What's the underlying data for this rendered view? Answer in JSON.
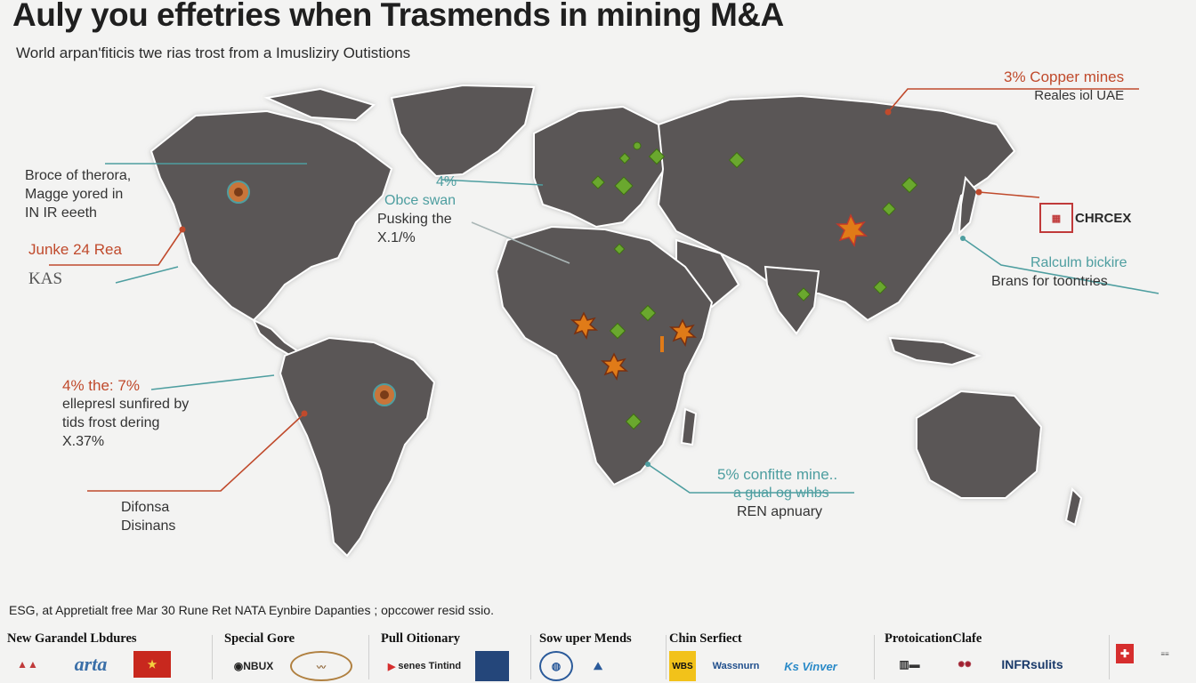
{
  "title": "Auly you effetries when Trasmends in mining M&A",
  "subtitle": "World arpan'fiticis twe rias trost from a Imusliziry Outistions",
  "callouts": {
    "north_america": {
      "line1": "Broce of therora,",
      "line2": "Magge yored in",
      "line3": "IN IR eeeth"
    },
    "mexico": {
      "line1": "Junke 24 Rea",
      "line2": "KAS"
    },
    "atlantic": {
      "line1": "4%",
      "line2": "Obce swan",
      "line3": "Pusking the",
      "line4": "X.1/%"
    },
    "copper": {
      "line1": "3% Copper mines",
      "line2": "Reales iol UAE"
    },
    "china_logo": {
      "text": "CHRCEX"
    },
    "east_asia": {
      "line1": "Ralculm bickire",
      "line2": "Brans for toontries"
    },
    "south_america_left": {
      "line1": "4% the: 7%",
      "line2": "ellepresl sunfired by",
      "line3": "tids frost dering",
      "line4": "X.37%"
    },
    "south_america_bottom": {
      "line1": "Difonsa",
      "line2": "Disinans"
    },
    "south_africa": {
      "line1": "5% confitte mine..",
      "line2": "a gual og whbs",
      "line3": "REN apnuary"
    }
  },
  "footer_note": "ESG, at Appretialt free Mar 30 Rune Ret NATA Eynbire Dapanties ; opccower resid ssio.",
  "logo_groups": [
    {
      "heading": "New Garandel Lbdures",
      "logos": [
        "arta"
      ]
    },
    {
      "heading": "Special Gore",
      "logos": [
        "NBUX"
      ]
    },
    {
      "heading": "Pull Oitionary",
      "logos": [
        "senes Tintind"
      ]
    },
    {
      "heading": "Sow uper Mends",
      "logos": []
    },
    {
      "heading": "Chin Serfiect",
      "logos": [
        "WBS",
        "Wassnurn",
        "Ks Vinver"
      ]
    },
    {
      "heading": "ProtoicationClafe",
      "logos": [
        "INFRsulits"
      ]
    }
  ],
  "colors": {
    "land": "#5a5756",
    "sea": "#f3f3f2",
    "accent_red": "#c04a2c",
    "accent_teal": "#4e9ea0",
    "marker_green": "#6aa82e",
    "marker_orange": "#e07b18"
  },
  "map_markers": [
    {
      "icon": "mining-site-icon",
      "region": "north-america"
    },
    {
      "icon": "mining-site-icon",
      "region": "south-america"
    },
    {
      "icon": "star-burst-icon",
      "region": "west-africa"
    },
    {
      "icon": "star-burst-icon",
      "region": "central-africa"
    },
    {
      "icon": "star-burst-icon",
      "region": "east-africa"
    },
    {
      "icon": "star-burst-icon",
      "region": "china"
    },
    {
      "icon": "green-marker-icon",
      "region": "europe"
    },
    {
      "icon": "green-marker-icon",
      "region": "asia"
    },
    {
      "icon": "green-marker-icon",
      "region": "africa"
    }
  ]
}
